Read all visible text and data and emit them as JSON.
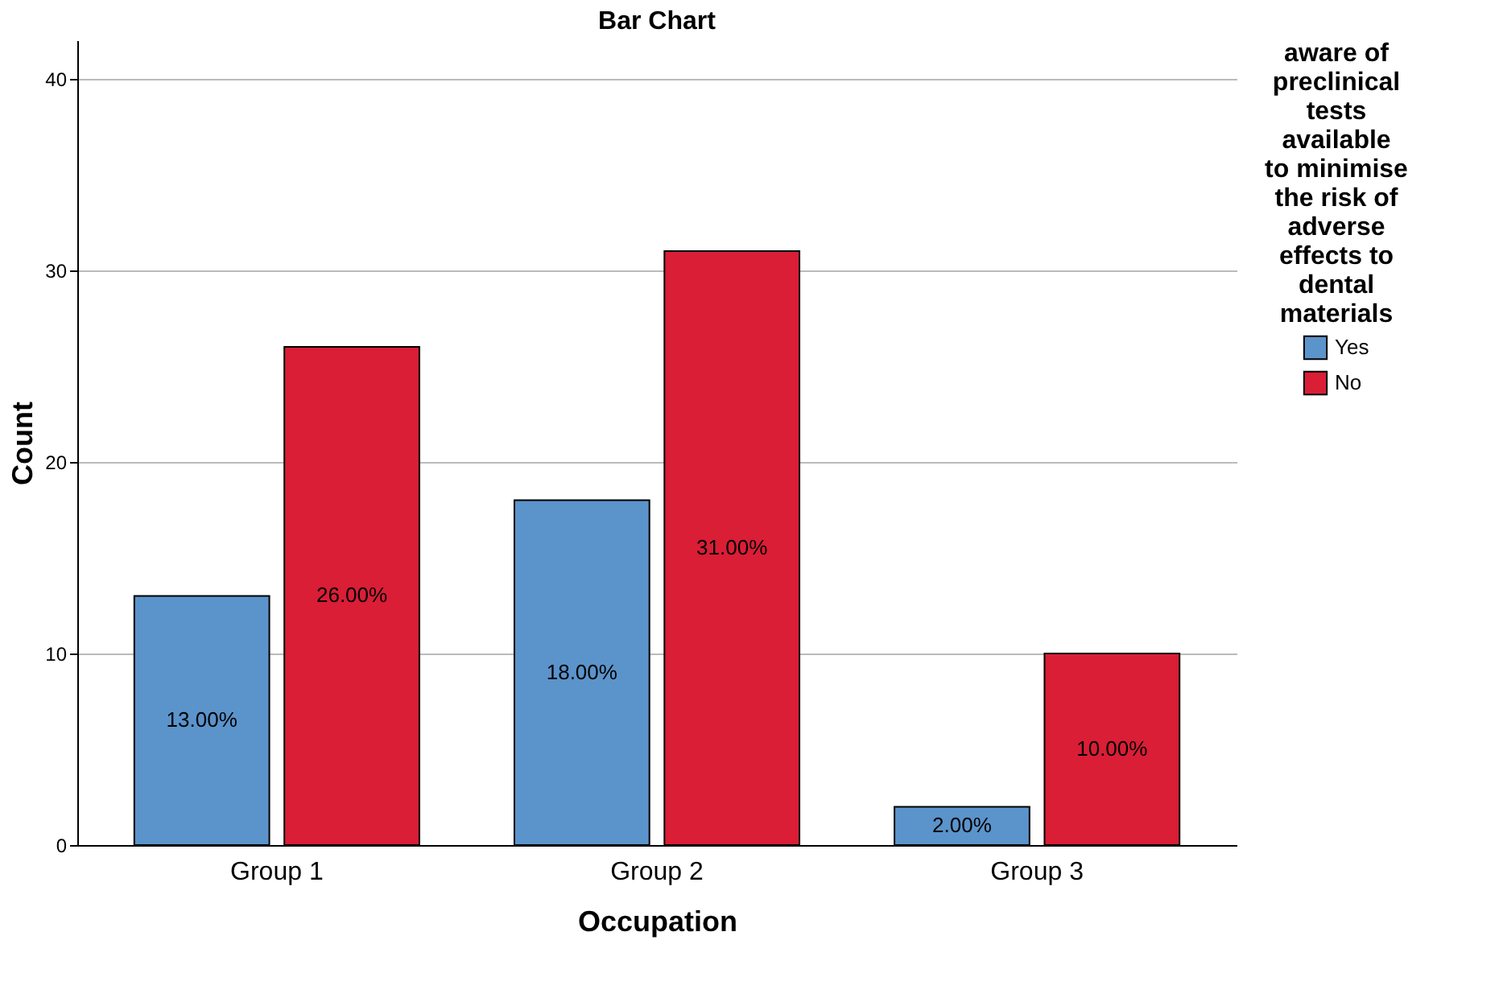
{
  "chart_data": {
    "type": "bar",
    "title": "Bar Chart",
    "xlabel": "Occupation",
    "ylabel": "Count",
    "legend_title": "aware of preclinical tests available to minimise the risk of adverse effects to dental materials",
    "categories": [
      "Group 1",
      "Group 2",
      "Group 3"
    ],
    "series": [
      {
        "name": "Yes",
        "color": "#5b93cb",
        "values": [
          13,
          18,
          2
        ],
        "value_labels": [
          "13.00%",
          "18.00%",
          "2.00%"
        ]
      },
      {
        "name": "No",
        "color": "#d91e36",
        "values": [
          26,
          31,
          10
        ],
        "value_labels": [
          "26.00%",
          "31.00%",
          "10.00%"
        ]
      }
    ],
    "ylim": [
      0,
      42
    ],
    "yticks": [
      0,
      10,
      20,
      30,
      40
    ],
    "grid": "y",
    "legend": "right"
  }
}
